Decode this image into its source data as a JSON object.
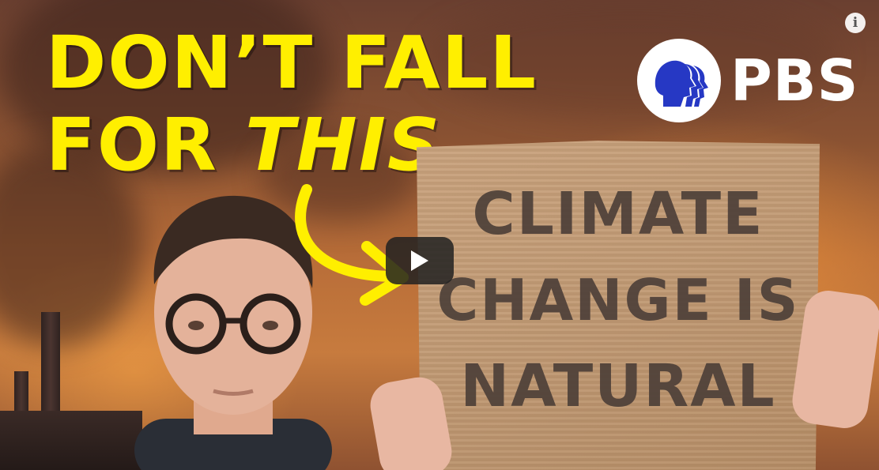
{
  "thumbnail": {
    "headline_line1": "DON’T FALL",
    "headline_line2_prefix": "FOR ",
    "headline_line2_emphasis": "THIS",
    "sign_lines": [
      "CLIMATE",
      "CHANGE IS",
      "NATURAL"
    ],
    "logo_text": "PBS"
  },
  "controls": {
    "info_icon": "info-icon",
    "info_glyph": "i",
    "play_icon": "play-icon"
  },
  "colors": {
    "headline": "#ffef00",
    "pbs_blue": "#2638c4",
    "play_bg": "#212121"
  }
}
